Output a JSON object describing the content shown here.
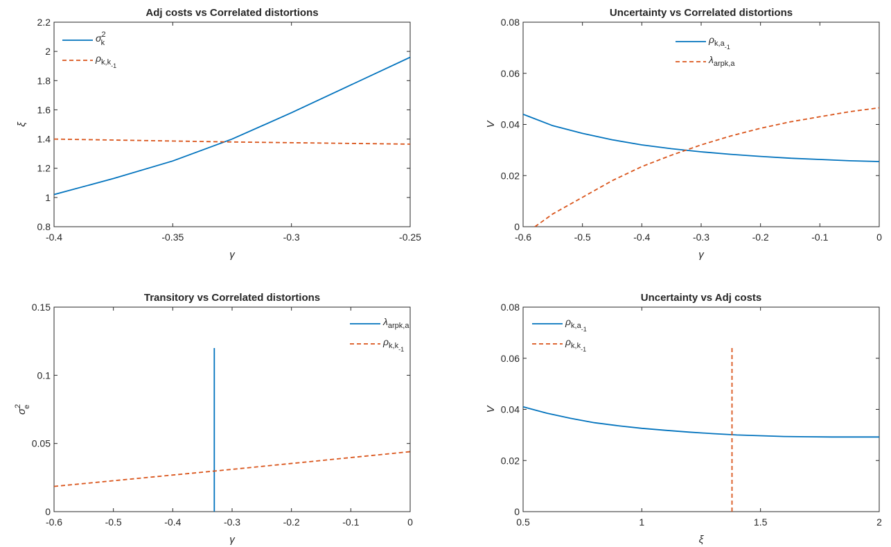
{
  "chart_data": [
    {
      "type": "line",
      "title": "Adj costs vs Correlated distortions",
      "xlabel": "γ",
      "ylabel": "ξ",
      "xlim": [
        -0.4,
        -0.25
      ],
      "ylim": [
        0.8,
        2.2
      ],
      "xticks": [
        -0.4,
        -0.35,
        -0.3,
        -0.25
      ],
      "xtick_labels": [
        "-0.4",
        "-0.35",
        "-0.3",
        "-0.25"
      ],
      "yticks": [
        0.8,
        1.0,
        1.2,
        1.4,
        1.6,
        1.8,
        2.0,
        2.2
      ],
      "ytick_labels": [
        "0.8",
        "1",
        "1.2",
        "1.4",
        "1.6",
        "1.8",
        "2",
        "2.2"
      ],
      "legend": "top-left",
      "series": [
        {
          "name": "σ",
          "sup": "2",
          "sub": "k",
          "color": "#0072BD",
          "style": "solid",
          "x": [
            -0.4,
            -0.375,
            -0.35,
            -0.325,
            -0.3,
            -0.275,
            -0.25
          ],
          "y": [
            1.02,
            1.13,
            1.25,
            1.4,
            1.58,
            1.77,
            1.96
          ]
        },
        {
          "name": "ρ",
          "sub": "k,k",
          "subsub": "-1",
          "color": "#D95319",
          "style": "dashed",
          "x": [
            -0.4,
            -0.325,
            -0.25
          ],
          "y": [
            1.4,
            1.38,
            1.365
          ]
        }
      ]
    },
    {
      "type": "line",
      "title": "Uncertainty vs Correlated distortions",
      "xlabel": "γ",
      "ylabel": "V",
      "xlim": [
        -0.6,
        0
      ],
      "ylim": [
        0,
        0.08
      ],
      "xticks": [
        -0.6,
        -0.5,
        -0.4,
        -0.3,
        -0.2,
        -0.1,
        0
      ],
      "xtick_labels": [
        "-0.6",
        "-0.5",
        "-0.4",
        "-0.3",
        "-0.2",
        "-0.1",
        "0"
      ],
      "yticks": [
        0,
        0.02,
        0.04,
        0.06,
        0.08
      ],
      "ytick_labels": [
        "0",
        "0.02",
        "0.04",
        "0.06",
        "0.08"
      ],
      "legend": "top-center",
      "series": [
        {
          "name": "ρ",
          "sub": "k,a",
          "subsub": "-1",
          "color": "#0072BD",
          "style": "solid",
          "x": [
            -0.6,
            -0.55,
            -0.5,
            -0.45,
            -0.4,
            -0.35,
            -0.3,
            -0.25,
            -0.2,
            -0.15,
            -0.1,
            -0.05,
            0
          ],
          "y": [
            0.044,
            0.0395,
            0.0365,
            0.034,
            0.032,
            0.0305,
            0.0293,
            0.0283,
            0.0275,
            0.0268,
            0.0263,
            0.0258,
            0.0255
          ]
        },
        {
          "name": "λ",
          "sub": "arpk,a",
          "color": "#D95319",
          "style": "dashed",
          "x": [
            -0.58,
            -0.55,
            -0.5,
            -0.45,
            -0.4,
            -0.35,
            -0.3,
            -0.25,
            -0.2,
            -0.15,
            -0.1,
            -0.05,
            0
          ],
          "y": [
            0,
            0.005,
            0.0115,
            0.018,
            0.0235,
            0.028,
            0.032,
            0.0355,
            0.0385,
            0.041,
            0.043,
            0.045,
            0.0465
          ]
        }
      ]
    },
    {
      "type": "line",
      "title": "Transitory vs Correlated distortions",
      "xlabel": "γ",
      "ylabel": "σ",
      "ylabel_sup": "2",
      "ylabel_sub": "e",
      "xlim": [
        -0.6,
        0
      ],
      "ylim": [
        0,
        0.15
      ],
      "xticks": [
        -0.6,
        -0.5,
        -0.4,
        -0.3,
        -0.2,
        -0.1,
        0
      ],
      "xtick_labels": [
        "-0.6",
        "-0.5",
        "-0.4",
        "-0.3",
        "-0.2",
        "-0.1",
        "0"
      ],
      "yticks": [
        0,
        0.05,
        0.1,
        0.15
      ],
      "ytick_labels": [
        "0",
        "0.05",
        "0.1",
        "0.15"
      ],
      "legend": "top-right",
      "series": [
        {
          "name": "λ",
          "sub": "arpk,a",
          "color": "#0072BD",
          "style": "solid",
          "x": [
            -0.33,
            -0.33
          ],
          "y": [
            0,
            0.12
          ]
        },
        {
          "name": "ρ",
          "sub": "k,k",
          "subsub": "-1",
          "color": "#D95319",
          "style": "dashed",
          "x": [
            -0.6,
            -0.3,
            0
          ],
          "y": [
            0.0185,
            0.031,
            0.044
          ]
        }
      ]
    },
    {
      "type": "line",
      "title": "Uncertainty vs Adj costs",
      "xlabel": "ξ",
      "ylabel": "V",
      "xlim": [
        0.5,
        2
      ],
      "ylim": [
        0,
        0.08
      ],
      "xticks": [
        0.5,
        1,
        1.5,
        2
      ],
      "xtick_labels": [
        "0.5",
        "1",
        "1.5",
        "2"
      ],
      "yticks": [
        0,
        0.02,
        0.04,
        0.06,
        0.08
      ],
      "ytick_labels": [
        "0",
        "0.02",
        "0.04",
        "0.06",
        "0.08"
      ],
      "legend": "top-left",
      "series": [
        {
          "name": "ρ",
          "sub": "k,a",
          "subsub": "-1",
          "color": "#0072BD",
          "style": "solid",
          "x": [
            0.5,
            0.6,
            0.7,
            0.8,
            0.9,
            1.0,
            1.1,
            1.2,
            1.3,
            1.4,
            1.5,
            1.6,
            1.7,
            1.8,
            1.9,
            2.0
          ],
          "y": [
            0.041,
            0.0385,
            0.0365,
            0.0348,
            0.0336,
            0.0326,
            0.0318,
            0.0311,
            0.0305,
            0.03,
            0.0297,
            0.0294,
            0.0293,
            0.0292,
            0.0292,
            0.0292
          ]
        },
        {
          "name": "ρ",
          "sub": "k,k",
          "subsub": "-1",
          "color": "#D95319",
          "style": "dashed",
          "x": [
            1.38,
            1.38
          ],
          "y": [
            0,
            0.064
          ]
        }
      ]
    }
  ]
}
